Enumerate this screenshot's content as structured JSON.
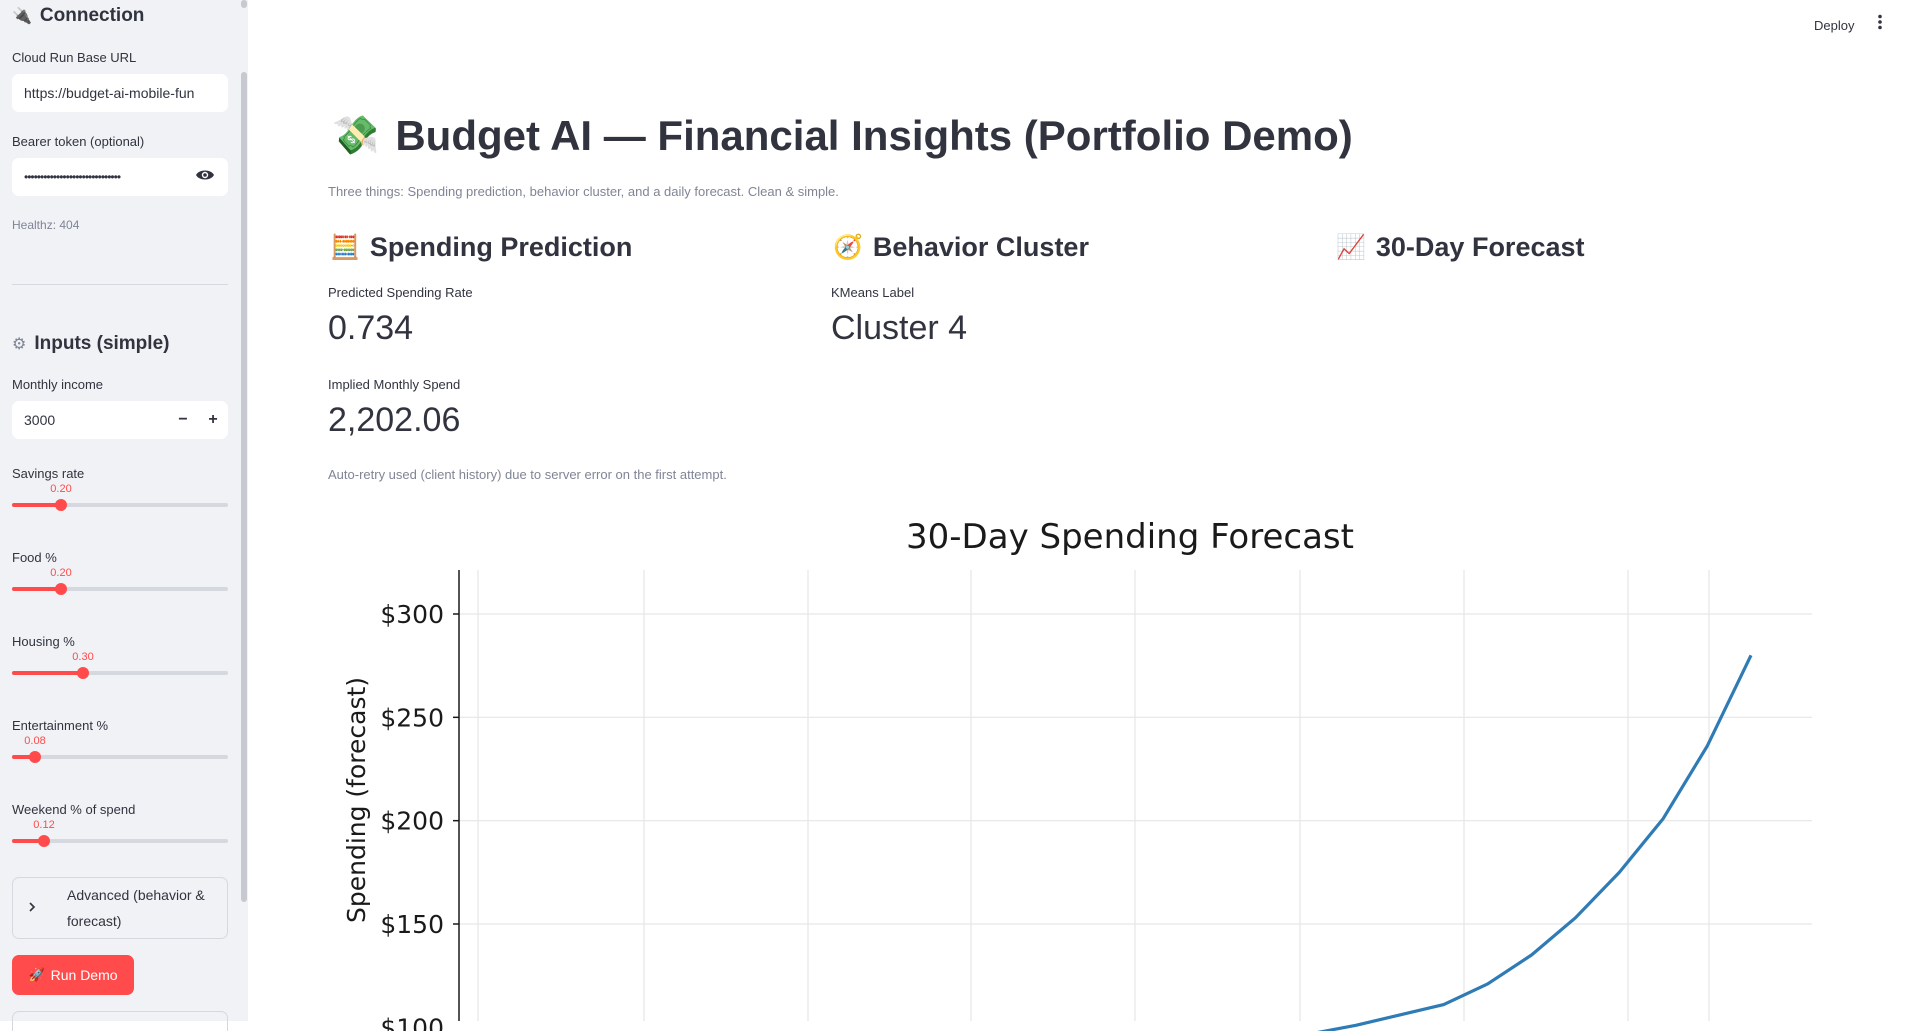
{
  "header": {
    "deploy_label": "Deploy"
  },
  "sidebar": {
    "connection": {
      "heading": "Connection",
      "icon": "plug-icon",
      "base_url_label": "Cloud Run Base URL",
      "base_url_value": "https://budget-ai-mobile-fun",
      "token_label": "Bearer token (optional)",
      "token_value": "••••••••••••••••••••••••••••••",
      "healthz": "Healthz: 404"
    },
    "inputs": {
      "heading": "Inputs (simple)",
      "icon": "gear-icon",
      "income_label": "Monthly income",
      "income_value": "3000",
      "sliders": [
        {
          "label": "Savings rate",
          "value": "0.20",
          "fraction": 0.2
        },
        {
          "label": "Food %",
          "value": "0.20",
          "fraction": 0.2
        },
        {
          "label": "Housing %",
          "value": "0.30",
          "fraction": 0.3
        },
        {
          "label": "Entertainment %",
          "value": "0.08",
          "fraction": 0.08
        },
        {
          "label": "Weekend % of spend",
          "value": "0.12",
          "fraction": 0.12
        }
      ]
    },
    "advanced_label": "Advanced (behavior & forecast)",
    "run_label": "Run Demo"
  },
  "main": {
    "title": "Budget AI — Financial Insights (Portfolio Demo)",
    "caption": "Three things: Spending prediction, behavior cluster, and a daily forecast. Clean & simple.",
    "columns": {
      "spending": {
        "heading": "Spending Prediction",
        "icon": "abacus-icon",
        "rate_label": "Predicted Spending Rate",
        "rate_value": "0.734",
        "monthly_label": "Implied Monthly Spend",
        "monthly_value": "2,202.06"
      },
      "cluster": {
        "heading": "Behavior Cluster",
        "icon": "compass-icon",
        "label": "KMeans Label",
        "value": "Cluster 4"
      },
      "forecast": {
        "heading": "30-Day Forecast",
        "icon": "chart-increasing-icon"
      }
    },
    "note": "Auto-retry used (client history) due to server error on the first attempt."
  },
  "chart_data": {
    "type": "line",
    "title": "30-Day Spending Forecast",
    "xlabel": "",
    "ylabel": "Spending (forecast)",
    "ylim": [
      100,
      320
    ],
    "yticks": [
      "$100",
      "$150",
      "$200",
      "$250",
      "$300"
    ],
    "ytick_values": [
      100,
      150,
      200,
      250,
      300
    ],
    "xlim": [
      0.5,
      30.5
    ],
    "grid": true,
    "color": "#2e7bb5",
    "series": [
      {
        "name": "",
        "x": [
          20,
          21,
          22,
          23,
          24,
          25,
          26,
          27,
          28,
          29,
          30
        ],
        "values": [
          97,
          101,
          106,
          111,
          121,
          135,
          153,
          175,
          201,
          236,
          280
        ]
      }
    ]
  }
}
